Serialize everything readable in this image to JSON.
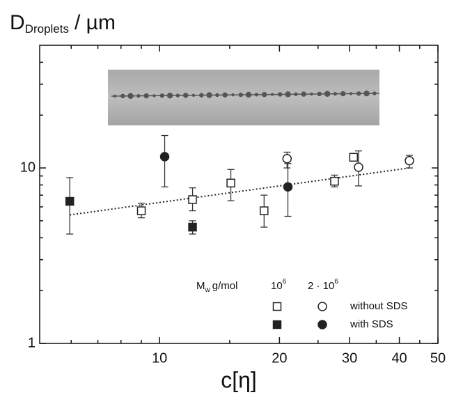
{
  "chart_data": {
    "type": "scatter",
    "ylabel": {
      "base": "D",
      "sub": "Droplets",
      "rest": "/ µm"
    },
    "xlabel": "c[η]",
    "log_x": true,
    "log_y": true,
    "xlim": [
      5,
      50
    ],
    "ylim": [
      1,
      50
    ],
    "xticks": [
      10,
      20,
      30,
      40,
      50
    ],
    "yticks": [
      1,
      10
    ],
    "xminorticks": [
      6,
      7,
      8,
      9,
      15,
      25,
      35,
      45
    ],
    "yminorticks": [
      2,
      3,
      4,
      5,
      6,
      7,
      8,
      9,
      20,
      30,
      40
    ],
    "legend": {
      "title": {
        "base": "M",
        "sub": "w",
        "rest": "g/mol"
      },
      "columns": [
        {
          "base": "10",
          "sup": "6"
        },
        {
          "base": "2 · 10",
          "sup": "6"
        }
      ],
      "rows": [
        "without SDS",
        "with SDS"
      ]
    },
    "series": [
      {
        "marker": "square",
        "filled": false,
        "color": "#222222",
        "x": [
          9.0,
          12.1,
          15.1,
          18.3,
          27.5,
          30.7
        ],
        "values": [
          5.7,
          6.6,
          8.2,
          5.7,
          8.4,
          11.5
        ],
        "lower": [
          5.2,
          5.7,
          6.5,
          4.6,
          7.8,
          null
        ],
        "upper": [
          6.3,
          7.7,
          9.8,
          7.0,
          9.1,
          null
        ]
      },
      {
        "marker": "circle",
        "filled": false,
        "color": "#222222",
        "x": [
          20.9,
          31.6,
          42.4
        ],
        "values": [
          11.3,
          10.1,
          11.0
        ],
        "lower": [
          10.0,
          7.9,
          10.0
        ],
        "upper": [
          12.3,
          12.5,
          11.8
        ]
      },
      {
        "marker": "square",
        "filled": true,
        "color": "#222222",
        "x": [
          5.95,
          12.1
        ],
        "values": [
          6.45,
          4.6
        ],
        "lower": [
          4.2,
          4.2
        ],
        "upper": [
          8.8,
          5.0
        ]
      },
      {
        "marker": "circle",
        "filled": true,
        "color": "#222222",
        "x": [
          10.3,
          21.0
        ],
        "values": [
          11.6,
          7.8
        ],
        "lower": [
          7.8,
          5.3
        ],
        "upper": [
          15.3,
          10.6
        ]
      }
    ],
    "fit": {
      "x": [
        5.95,
        42.4
      ],
      "values": [
        5.4,
        10.0
      ],
      "color": "#222222"
    }
  }
}
